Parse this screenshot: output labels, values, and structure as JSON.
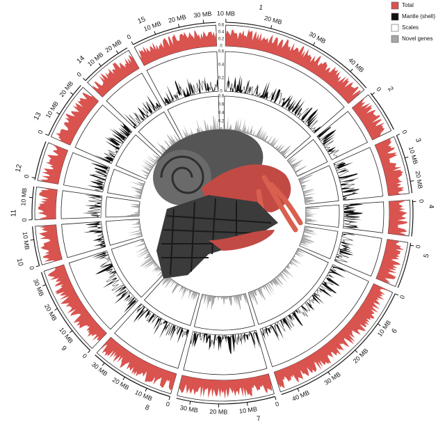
{
  "legend": [
    {
      "label": "Total",
      "color": "#d9534f"
    },
    {
      "label": "Mantle (shell)",
      "color": "#111111"
    },
    {
      "label": "Scales",
      "color": "#ffffff"
    },
    {
      "label": "Novel genes",
      "color": "#a6a6a6"
    }
  ],
  "chromosomes": [
    {
      "name": "1",
      "ticks": [
        "10 MB",
        "20 MB",
        "30 MB",
        "40 MB"
      ]
    },
    {
      "name": "2",
      "ticks": [
        "0"
      ]
    },
    {
      "name": "3",
      "ticks": [
        "0",
        "10 MB",
        "20 MB"
      ]
    },
    {
      "name": "4",
      "ticks": [
        "0"
      ]
    },
    {
      "name": "5",
      "ticks": [
        "0"
      ]
    },
    {
      "name": "6",
      "ticks": [
        "0",
        "10 MB",
        "20 MB",
        "30 MB",
        "40 MB"
      ]
    },
    {
      "name": "7",
      "ticks": [
        "0",
        "10 MB",
        "20 MB",
        "30 MB"
      ]
    },
    {
      "name": "8",
      "ticks": [
        "0",
        "10 MB",
        "20 MB",
        "30 MB"
      ]
    },
    {
      "name": "9",
      "ticks": [
        "0",
        "10 MB",
        "20 MB",
        "30 MB"
      ]
    },
    {
      "name": "10",
      "ticks": [
        "0",
        "10 MB"
      ]
    },
    {
      "name": "11",
      "ticks": [
        "0",
        "10 MB"
      ]
    },
    {
      "name": "12",
      "ticks": [
        "0"
      ]
    },
    {
      "name": "13",
      "ticks": [
        "0",
        "10 MB",
        "20 MB"
      ]
    },
    {
      "name": "14",
      "ticks": [
        "0",
        "10 MB",
        "20 MB"
      ]
    },
    {
      "name": "15",
      "ticks": [
        "0",
        "10 MB",
        "20 MB",
        "30 MB"
      ]
    }
  ],
  "track_scales": [
    [
      "0.6",
      "0.4",
      "0.2",
      "0"
    ],
    [
      "0.6",
      "0.4",
      "0.2",
      "0"
    ],
    [
      "0.8",
      "0.6",
      "0.4",
      "0.2",
      "0"
    ]
  ]
}
